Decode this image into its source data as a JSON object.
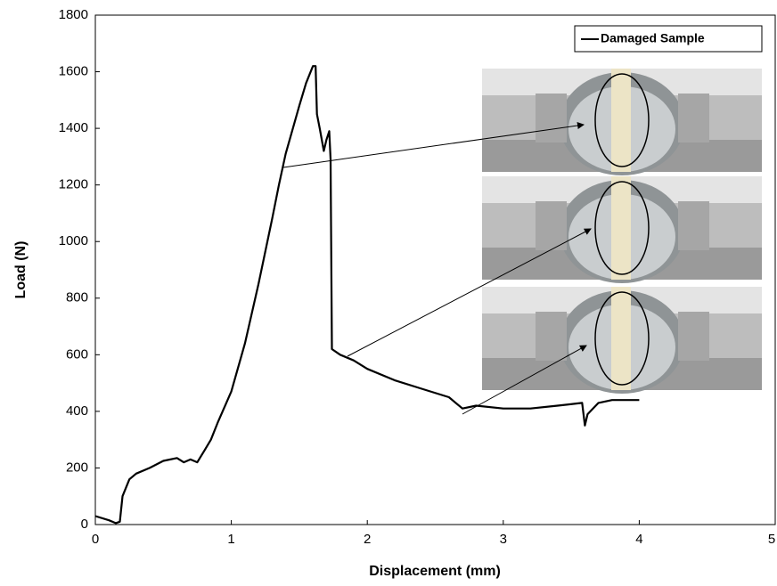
{
  "chart_data": {
    "type": "line",
    "x": [
      0,
      0.1,
      0.15,
      0.18,
      0.2,
      0.25,
      0.3,
      0.4,
      0.5,
      0.6,
      0.65,
      0.7,
      0.75,
      0.8,
      0.85,
      0.9,
      1.0,
      1.1,
      1.2,
      1.3,
      1.35,
      1.4,
      1.5,
      1.55,
      1.6,
      1.62,
      1.63,
      1.65,
      1.68,
      1.7,
      1.72,
      1.73,
      1.74,
      1.8,
      1.9,
      2.0,
      2.2,
      2.4,
      2.6,
      2.7,
      2.8,
      3.0,
      3.2,
      3.4,
      3.58,
      3.6,
      3.62,
      3.7,
      3.8,
      4.0
    ],
    "series": [
      {
        "name": "Damaged Sample",
        "color": "#000000",
        "values": [
          30,
          15,
          5,
          10,
          100,
          160,
          180,
          200,
          225,
          235,
          220,
          230,
          220,
          260,
          300,
          360,
          470,
          640,
          850,
          1080,
          1200,
          1310,
          1480,
          1560,
          1620,
          1620,
          1450,
          1400,
          1320,
          1360,
          1390,
          1290,
          620,
          600,
          580,
          550,
          510,
          480,
          450,
          410,
          420,
          410,
          410,
          420,
          430,
          350,
          390,
          430,
          440,
          440
        ]
      }
    ],
    "xlabel": "Displacement (mm)",
    "ylabel": "Load (N)",
    "xlim": [
      0,
      5
    ],
    "xticks": [
      0,
      1,
      2,
      3,
      4,
      5
    ],
    "ylim": [
      0,
      1800
    ],
    "yticks": [
      0,
      200,
      400,
      600,
      800,
      1000,
      1200,
      1400,
      1600,
      1800
    ],
    "legend": "upper right"
  }
}
